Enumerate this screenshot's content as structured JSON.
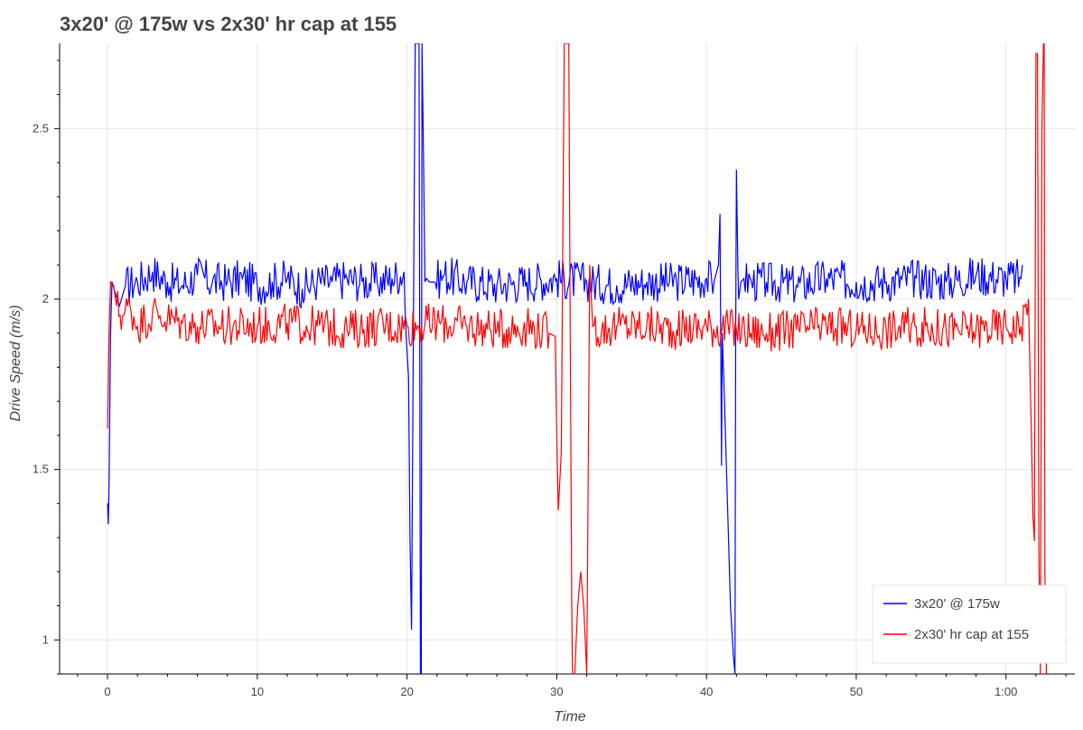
{
  "chart_data": {
    "type": "line",
    "title": "3x20' @ 175w vs 2x30' hr cap at 155",
    "xlabel": "Time",
    "ylabel": "Drive Speed (m/s)",
    "xlim": [
      -3.2,
      64.6
    ],
    "ylim": [
      0.9,
      2.75
    ],
    "x_ticks": [
      {
        "value": 0,
        "label": "0"
      },
      {
        "value": 10,
        "label": "10"
      },
      {
        "value": 20,
        "label": "20"
      },
      {
        "value": 30,
        "label": "30"
      },
      {
        "value": 40,
        "label": "40"
      },
      {
        "value": 50,
        "label": "50"
      },
      {
        "value": 60,
        "label": "1:00"
      }
    ],
    "y_ticks": [
      {
        "value": 1,
        "label": "1"
      },
      {
        "value": 1.5,
        "label": "1.5"
      },
      {
        "value": 2,
        "label": "2"
      },
      {
        "value": 2.5,
        "label": "2.5"
      }
    ],
    "grid": true,
    "legend_position": "bottom-right",
    "series": [
      {
        "name": "3x20' @ 175w",
        "color": "#0000ff",
        "x": [
          0,
          0.05,
          0.1,
          0.2,
          0.3,
          0.5,
          0.8,
          1.2,
          2,
          3,
          4,
          5,
          6,
          7,
          8,
          9,
          10,
          11,
          12,
          13,
          14,
          15,
          16,
          17,
          18,
          19,
          19.8,
          19.9,
          20.0,
          20.1,
          20.2,
          20.3,
          20.45,
          20.55,
          20.6,
          20.65,
          20.8,
          20.9,
          20.95,
          21.0,
          21.1,
          21.2,
          21.3,
          21.5,
          21.8,
          22.5,
          24,
          26,
          28,
          30,
          32,
          34,
          36,
          38,
          40,
          40.5,
          40.8,
          40.9,
          41.0,
          41.05,
          41.2,
          41.4,
          41.6,
          41.8,
          41.9,
          41.95,
          42.0,
          42.1,
          42.15,
          42.3,
          42.5,
          43,
          44,
          46,
          48,
          50,
          52,
          54,
          56,
          58,
          60,
          61.0,
          61.1
        ],
        "y": [
          1.4,
          1.34,
          1.45,
          1.9,
          2.05,
          2.02,
          1.98,
          2.04,
          2.05,
          2.08,
          2.05,
          2.04,
          2.07,
          2.05,
          2.05,
          2.06,
          2.04,
          2.05,
          2.06,
          2.03,
          2.05,
          2.05,
          2.06,
          2.05,
          2.05,
          2.06,
          2.08,
          1.92,
          1.85,
          1.77,
          1.3,
          1.03,
          2.1,
          2.75,
          2.75,
          2.75,
          2.75,
          0.9,
          0.9,
          2.75,
          2.43,
          2.05,
          2.06,
          2.05,
          2.05,
          2.07,
          2.05,
          2.04,
          2.05,
          2.06,
          2.05,
          2.04,
          2.05,
          2.05,
          2.06,
          2.05,
          2.1,
          2.25,
          1.51,
          1.9,
          1.7,
          1.4,
          1.1,
          0.95,
          0.9,
          1.9,
          2.38,
          2.08,
          2.0,
          2.05,
          2.06,
          2.05,
          2.05,
          2.04,
          2.06,
          2.05,
          2.05,
          2.06,
          2.05,
          2.07,
          2.06,
          2.06,
          2.1
        ]
      },
      {
        "name": "2x30' hr cap at 155",
        "color": "#ff0000",
        "x": [
          0,
          0.05,
          0.1,
          0.2,
          0.4,
          0.6,
          1,
          1.5,
          2,
          2.5,
          3,
          3.5,
          4,
          5,
          6,
          8,
          10,
          12,
          14,
          16,
          18,
          20,
          22,
          24,
          26,
          28,
          29.5,
          29.9,
          30.0,
          30.1,
          30.3,
          30.5,
          30.55,
          30.6,
          30.8,
          30.9,
          31.0,
          31.05,
          31.2,
          31.4,
          31.6,
          31.8,
          32.0,
          32.2,
          32.4,
          33,
          34,
          36,
          38,
          40,
          42,
          44,
          46,
          48,
          50,
          52,
          54,
          56,
          58,
          60,
          61.0,
          61.5,
          61.7,
          61.8,
          61.9,
          62.0,
          62.1,
          62.2,
          62.3,
          62.4,
          62.5,
          62.55,
          62.6,
          62.7,
          62.8
        ],
        "y": [
          1.62,
          1.75,
          1.9,
          2.05,
          2.04,
          1.98,
          1.95,
          1.98,
          1.92,
          1.94,
          1.96,
          1.95,
          1.94,
          1.93,
          1.92,
          1.92,
          1.92,
          1.93,
          1.92,
          1.91,
          1.92,
          1.92,
          1.93,
          1.92,
          1.91,
          1.92,
          1.9,
          1.89,
          1.6,
          1.38,
          1.55,
          2.75,
          2.75,
          2.75,
          2.75,
          1.9,
          1.1,
          0.9,
          0.9,
          1.1,
          1.2,
          1.1,
          0.9,
          2.1,
          1.92,
          1.91,
          1.92,
          1.92,
          1.91,
          1.92,
          1.91,
          1.9,
          1.91,
          1.92,
          1.91,
          1.91,
          1.92,
          1.91,
          1.91,
          1.92,
          1.92,
          2.0,
          1.6,
          1.36,
          1.29,
          2.72,
          2.72,
          1.25,
          0.9,
          2.5,
          2.75,
          2.75,
          1.2,
          0.9,
          0.9
        ]
      }
    ]
  }
}
